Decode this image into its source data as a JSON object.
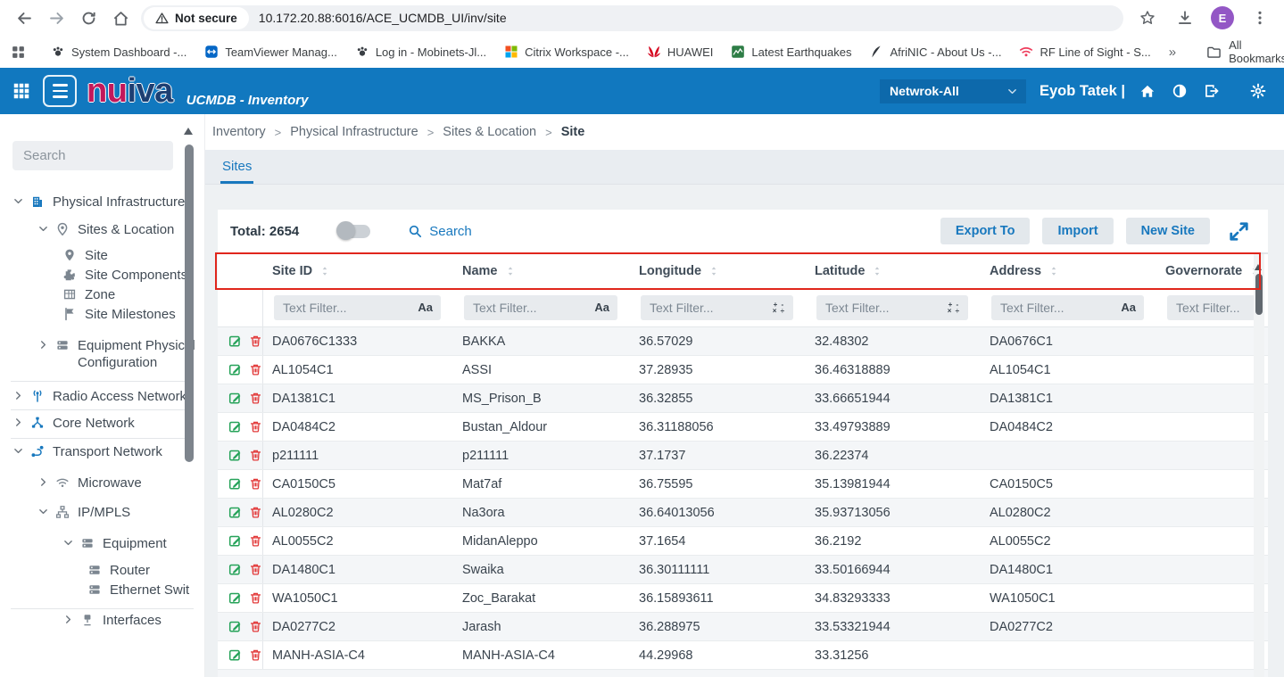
{
  "browser": {
    "security_chip": "Not secure",
    "url": "10.172.20.88:6016/ACE_UCMDB_UI/inv/site",
    "avatar_letter": "E",
    "overflow_label": "»",
    "all_bookmarks_label": "All Bookmarks",
    "bookmarks": [
      {
        "label": "System Dashboard -...",
        "icon": "favMobinets"
      },
      {
        "label": "TeamViewer Manag...",
        "icon": "favTeamviewer"
      },
      {
        "label": "Log in - Mobinets-Jl...",
        "icon": "favMobinets"
      },
      {
        "label": "Citrix Workspace -...",
        "icon": "favCitrix"
      },
      {
        "label": "HUAWEI",
        "icon": "favHuawei"
      },
      {
        "label": "Latest Earthquakes",
        "icon": "favEarthquakes"
      },
      {
        "label": "AfriNIC - About Us -...",
        "icon": "favAfrinic"
      },
      {
        "label": "RF Line of Sight - S...",
        "icon": "favRf"
      }
    ]
  },
  "app_header": {
    "logo": {
      "prefix": "nu",
      "suffix": "iva"
    },
    "title": "UCMDB - Inventory",
    "network_select": "Netwrok-All",
    "user": "Eyob Tatek |"
  },
  "sidebar": {
    "search_placeholder": "Search",
    "tree": [
      {
        "label": "Physical Infrastructure",
        "icon": "building",
        "chevron": "down",
        "depth": 0,
        "blue": true
      },
      {
        "label": "Sites & Location",
        "icon": "locationPin",
        "chevron": "down",
        "depth": 1
      },
      {
        "label": "Site",
        "icon": "pin",
        "depth": 2
      },
      {
        "label": "Site Components",
        "icon": "puzzle",
        "depth": 2
      },
      {
        "label": "Zone",
        "icon": "grid",
        "depth": 2
      },
      {
        "label": "Site Milestones",
        "icon": "flag",
        "depth": 2
      },
      {
        "label": "Equipment Physical Configuration",
        "icon": "server",
        "chevron": "right",
        "depth": 1
      },
      {
        "divider": true
      },
      {
        "label": "Radio Access Network",
        "icon": "antenna",
        "chevron": "right",
        "depth": 0,
        "blue": true
      },
      {
        "divider": true
      },
      {
        "label": "Core Network",
        "icon": "core",
        "chevron": "right",
        "depth": 0,
        "blue": true
      },
      {
        "divider": true
      },
      {
        "label": "Transport Network",
        "icon": "route",
        "chevron": "down",
        "depth": 0,
        "blue": true
      },
      {
        "label": "Microwave",
        "icon": "wifi",
        "chevron": "right",
        "depth": 1
      },
      {
        "label": "IP/MPLS",
        "icon": "hierarchy",
        "chevron": "down",
        "depth": 1
      },
      {
        "label": "Equipment",
        "icon": "server",
        "chevron": "down",
        "depth": 2
      },
      {
        "label": "Router",
        "icon": "server",
        "depth": 3
      },
      {
        "label": "Ethernet Swit",
        "icon": "server",
        "depth": 3
      },
      {
        "divider": true
      },
      {
        "label": "Interfaces",
        "icon": "interface",
        "chevron": "right",
        "depth": 2
      }
    ]
  },
  "breadcrumb": {
    "separator": ">",
    "items": [
      "Inventory",
      "Physical Infrastructure",
      "Sites & Location",
      "Site"
    ]
  },
  "tabs": [
    {
      "label": "Sites",
      "active": true
    }
  ],
  "toolbar": {
    "total_label": "Total: 2654",
    "search_label": "Search",
    "buttons": [
      {
        "label": "Export To"
      },
      {
        "label": "Import"
      },
      {
        "label": "New Site"
      }
    ]
  },
  "table": {
    "filter_placeholder": "Text Filter...",
    "filter_icons": {
      "text": "Aa",
      "number_top": "+ -",
      "number_bottom": "× ÷"
    },
    "columns": [
      {
        "label": "Site ID",
        "filter": "text"
      },
      {
        "label": "Name",
        "filter": "text"
      },
      {
        "label": "Longitude",
        "filter": "number"
      },
      {
        "label": "Latitude",
        "filter": "number"
      },
      {
        "label": "Address",
        "filter": "text"
      },
      {
        "label": "Governorate",
        "filter": "none"
      }
    ],
    "rows": [
      {
        "site_id": "DA0676C1333",
        "name": "BAKKA",
        "longitude": "36.57029",
        "latitude": "32.48302",
        "address": "DA0676C1",
        "governorate": ""
      },
      {
        "site_id": "AL1054C1",
        "name": "ASSI",
        "longitude": "37.28935",
        "latitude": "36.46318889",
        "address": "AL1054C1",
        "governorate": ""
      },
      {
        "site_id": "DA1381C1",
        "name": "MS_Prison_B",
        "longitude": "36.32855",
        "latitude": "33.66651944",
        "address": "DA1381C1",
        "governorate": ""
      },
      {
        "site_id": "DA0484C2",
        "name": "Bustan_Aldour",
        "longitude": "36.31188056",
        "latitude": "33.49793889",
        "address": "DA0484C2",
        "governorate": ""
      },
      {
        "site_id": "p211111",
        "name": "p211111",
        "longitude": "37.1737",
        "latitude": "36.22374",
        "address": "",
        "governorate": ""
      },
      {
        "site_id": "CA0150C5",
        "name": "Mat7af",
        "longitude": "36.75595",
        "latitude": "35.13981944",
        "address": "CA0150C5",
        "governorate": ""
      },
      {
        "site_id": "AL0280C2",
        "name": "Na3ora",
        "longitude": "36.64013056",
        "latitude": "35.93713056",
        "address": "AL0280C2",
        "governorate": ""
      },
      {
        "site_id": "AL0055C2",
        "name": "MidanAleppo",
        "longitude": "37.1654",
        "latitude": "36.2192",
        "address": "AL0055C2",
        "governorate": ""
      },
      {
        "site_id": "DA1480C1",
        "name": "Swaika",
        "longitude": "36.30111111",
        "latitude": "33.50166944",
        "address": "DA1480C1",
        "governorate": ""
      },
      {
        "site_id": "WA1050C1",
        "name": "Zoc_Barakat",
        "longitude": "36.15893611",
        "latitude": "34.83293333",
        "address": "WA1050C1",
        "governorate": ""
      },
      {
        "site_id": "DA0277C2",
        "name": "Jarash",
        "longitude": "36.288975",
        "latitude": "33.53321944",
        "address": "DA0277C2",
        "governorate": ""
      },
      {
        "site_id": "MANH-ASIA-C4",
        "name": "MANH-ASIA-C4",
        "longitude": "44.29968",
        "latitude": "33.31256",
        "address": "",
        "governorate": ""
      }
    ]
  },
  "colors": {
    "header_blue": "#1178bf",
    "accent_blue": "#1878be",
    "logo_crimson": "#c2185b",
    "logo_navy": "#1d3f72",
    "annotation_red": "#e0261c",
    "edit_green": "#27a35a",
    "delete_red": "#e23a3a"
  }
}
